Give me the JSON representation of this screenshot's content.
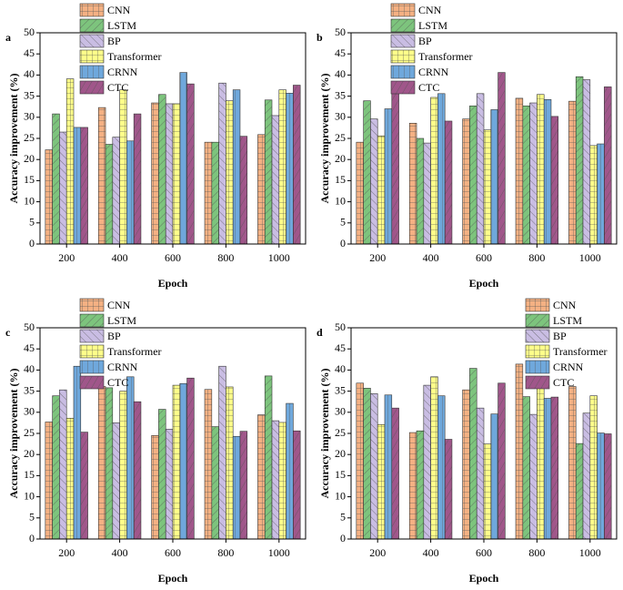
{
  "chart_data": [
    {
      "type": "bar",
      "panel_label": "a",
      "x_label": "Epoch",
      "y_label": "Accuracy improvement (%)",
      "categories": [
        "200",
        "400",
        "600",
        "800",
        "1000"
      ],
      "ylim": [
        0,
        50
      ],
      "yticks": [
        0,
        5,
        10,
        15,
        20,
        25,
        30,
        35,
        40,
        45,
        50
      ],
      "legend": "upper left",
      "series": [
        {
          "name": "CNN",
          "color": "#f4b183",
          "values": [
            22.3,
            32.3,
            33.4,
            24.1,
            25.9
          ]
        },
        {
          "name": "LSTM",
          "color": "#7dc47d",
          "values": [
            30.8,
            23.6,
            35.4,
            24.1,
            34.1
          ]
        },
        {
          "name": "BP",
          "color": "#c9bde3",
          "values": [
            26.5,
            25.3,
            33.2,
            38.1,
            30.4
          ]
        },
        {
          "name": "Transformer",
          "color": "#ffff8a",
          "values": [
            39.1,
            36.5,
            33.2,
            33.9,
            36.5
          ]
        },
        {
          "name": "CRNN",
          "color": "#6fa8dc",
          "values": [
            27.6,
            24.4,
            40.6,
            36.5,
            35.7
          ]
        },
        {
          "name": "CTC",
          "color": "#a0568a",
          "values": [
            27.6,
            30.8,
            37.9,
            25.5,
            37.6
          ]
        }
      ]
    },
    {
      "type": "bar",
      "panel_label": "b",
      "x_label": "Epoch",
      "y_label": "Accuracy improvement (%)",
      "categories": [
        "200",
        "400",
        "600",
        "800",
        "1000"
      ],
      "ylim": [
        0,
        50
      ],
      "yticks": [
        0,
        5,
        10,
        15,
        20,
        25,
        30,
        35,
        40,
        45,
        50
      ],
      "legend": "upper left",
      "series": [
        {
          "name": "CNN",
          "color": "#f4b183",
          "values": [
            24.1,
            28.6,
            29.6,
            34.5,
            33.8
          ]
        },
        {
          "name": "LSTM",
          "color": "#7dc47d",
          "values": [
            33.9,
            25.0,
            32.7,
            32.7,
            39.6
          ]
        },
        {
          "name": "BP",
          "color": "#c9bde3",
          "values": [
            29.6,
            23.9,
            35.6,
            33.4,
            38.9
          ]
        },
        {
          "name": "Transformer",
          "color": "#ffff8a",
          "values": [
            25.6,
            34.7,
            27.0,
            35.4,
            23.3
          ]
        },
        {
          "name": "CRNN",
          "color": "#6fa8dc",
          "values": [
            32.0,
            35.6,
            31.8,
            34.2,
            23.7
          ]
        },
        {
          "name": "CTC",
          "color": "#a0568a",
          "values": [
            37.9,
            29.1,
            40.6,
            30.2,
            37.2
          ]
        }
      ]
    },
    {
      "type": "bar",
      "panel_label": "c",
      "x_label": "Epoch",
      "y_label": "Accuracy improvement (%)",
      "categories": [
        "200",
        "400",
        "600",
        "800",
        "1000"
      ],
      "ylim": [
        0,
        50
      ],
      "yticks": [
        0,
        5,
        10,
        15,
        20,
        25,
        30,
        35,
        40,
        45,
        50
      ],
      "legend": "upper left",
      "series": [
        {
          "name": "CNN",
          "color": "#f4b183",
          "values": [
            27.7,
            36.1,
            24.5,
            35.4,
            29.4
          ]
        },
        {
          "name": "LSTM",
          "color": "#7dc47d",
          "values": [
            33.9,
            35.8,
            30.7,
            26.6,
            38.6
          ]
        },
        {
          "name": "BP",
          "color": "#c9bde3",
          "values": [
            35.3,
            27.5,
            26.0,
            40.9,
            28.0
          ]
        },
        {
          "name": "Transformer",
          "color": "#ffff8a",
          "values": [
            28.6,
            35.0,
            36.4,
            36.0,
            27.6
          ]
        },
        {
          "name": "CRNN",
          "color": "#6fa8dc",
          "values": [
            40.9,
            38.4,
            36.8,
            24.3,
            32.1
          ]
        },
        {
          "name": "CTC",
          "color": "#a0568a",
          "values": [
            25.3,
            32.5,
            38.1,
            25.5,
            25.6
          ]
        }
      ]
    },
    {
      "type": "bar",
      "panel_label": "d",
      "x_label": "Epoch",
      "y_label": "Accuracy improvement (%)",
      "categories": [
        "200",
        "400",
        "600",
        "800",
        "1000"
      ],
      "ylim": [
        0,
        50
      ],
      "yticks": [
        0,
        5,
        10,
        15,
        20,
        25,
        30,
        35,
        40,
        45,
        50
      ],
      "legend": "upper right",
      "series": [
        {
          "name": "CNN",
          "color": "#f4b183",
          "values": [
            36.9,
            25.2,
            35.3,
            41.4,
            36.1
          ]
        },
        {
          "name": "LSTM",
          "color": "#7dc47d",
          "values": [
            35.7,
            25.6,
            40.4,
            33.7,
            22.6
          ]
        },
        {
          "name": "BP",
          "color": "#c9bde3",
          "values": [
            34.4,
            36.4,
            31.0,
            29.5,
            29.8
          ]
        },
        {
          "name": "Transformer",
          "color": "#ffff8a",
          "values": [
            27.1,
            38.4,
            22.5,
            37.3,
            33.9
          ]
        },
        {
          "name": "CRNN",
          "color": "#6fa8dc",
          "values": [
            34.1,
            33.9,
            29.6,
            33.3,
            25.1
          ]
        },
        {
          "name": "CTC",
          "color": "#a0568a",
          "values": [
            31.0,
            23.6,
            36.9,
            33.6,
            24.9
          ]
        }
      ]
    }
  ]
}
